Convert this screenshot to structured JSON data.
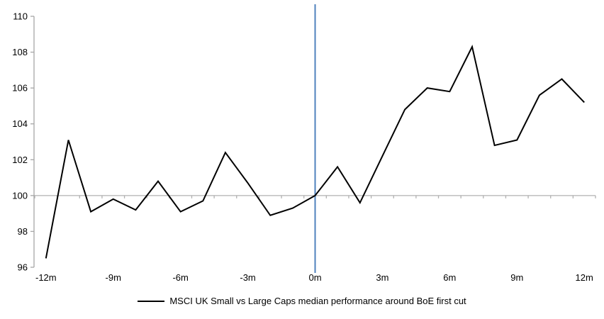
{
  "chart_data": {
    "type": "line",
    "title": "",
    "xlabel": "",
    "ylabel": "",
    "x": [
      -12,
      -11,
      -10,
      -9,
      -8,
      -7,
      -6,
      -5,
      -4,
      -3,
      -2,
      -1,
      0,
      1,
      2,
      3,
      4,
      5,
      6,
      7,
      8,
      9,
      10,
      11,
      12
    ],
    "series": [
      {
        "name": "MSCI UK Small vs Large Caps median performance around BoE first cut",
        "values": [
          96.5,
          103.1,
          99.1,
          99.8,
          99.2,
          100.8,
          99.1,
          99.7,
          102.4,
          100.7,
          98.9,
          99.3,
          100.0,
          101.6,
          99.6,
          102.2,
          104.8,
          106.0,
          105.8,
          108.3,
          102.8,
          103.1,
          105.6,
          106.5,
          105.2
        ],
        "color": "#000000"
      }
    ],
    "xlim": [
      -12.5,
      12.5
    ],
    "ylim": [
      96,
      110
    ],
    "y_ticks": [
      96,
      98,
      100,
      102,
      104,
      106,
      108,
      110
    ],
    "x_tick_values": [
      -12,
      -9,
      -6,
      -3,
      0,
      3,
      6,
      9,
      12
    ],
    "x_tick_labels": [
      "-12m",
      "-9m",
      "-6m",
      "-3m",
      "0m",
      "3m",
      "6m",
      "9m",
      "12m"
    ],
    "baseline_value": 100,
    "event_line_x": 0,
    "grid": false,
    "legend_position": "bottom",
    "colors": {
      "series_line": "#000000",
      "event_line": "#4f81bd",
      "baseline": "#b0b0b0",
      "axis": "#a6a6a6",
      "text": "#000000"
    }
  }
}
